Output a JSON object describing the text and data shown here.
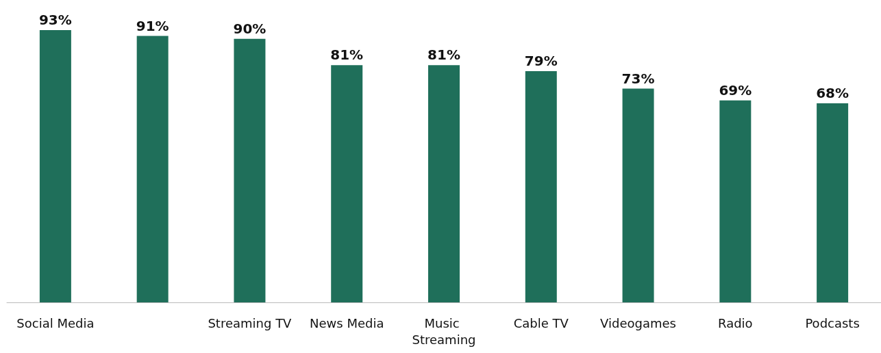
{
  "chart_data": {
    "type": "bar",
    "categories": [
      "Social Media",
      null,
      "Streaming TV",
      "News Media",
      "Music Streaming",
      "Cable TV",
      "Videogames",
      "Radio",
      "Podcasts"
    ],
    "values": [
      93,
      91,
      90,
      81,
      81,
      79,
      73,
      69,
      68
    ],
    "value_labels": [
      "93%",
      "91%",
      "90%",
      "81%",
      "81%",
      "79%",
      "73%",
      "69%",
      "68%"
    ],
    "color": "#1f6f5a"
  }
}
